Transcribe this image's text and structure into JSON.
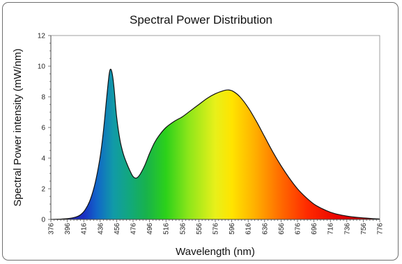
{
  "chart_data": {
    "type": "area",
    "title": "Spectral Power Distribution",
    "xlabel": "Wavelength (nm)",
    "ylabel": "Spectral Power intensity (mW/nm)",
    "xlim": [
      376,
      776
    ],
    "ylim": [
      0,
      12
    ],
    "x_ticks": [
      376,
      396,
      416,
      436,
      456,
      476,
      496,
      516,
      536,
      556,
      576,
      596,
      616,
      636,
      656,
      676,
      696,
      716,
      736,
      756,
      776
    ],
    "y_ticks": [
      0,
      2,
      4,
      6,
      8,
      10,
      12
    ],
    "grid": false,
    "fill": "visible-spectrum gradient",
    "series": [
      {
        "x": [
          376,
          386,
          396,
          406,
          412,
          418,
          424,
          430,
          436,
          440,
          444,
          447,
          449,
          451,
          453,
          456,
          460,
          464,
          468,
          472,
          476,
          480,
          484,
          490,
          496,
          502,
          508,
          516,
          526,
          536,
          546,
          556,
          566,
          576,
          586,
          592,
          598,
          606,
          616,
          626,
          636,
          646,
          656,
          666,
          676,
          686,
          696,
          706,
          716,
          726,
          736,
          746,
          756,
          766,
          776
        ],
        "y": [
          0.0,
          0.02,
          0.05,
          0.15,
          0.3,
          0.65,
          1.3,
          2.4,
          4.1,
          5.8,
          8.0,
          9.5,
          9.8,
          9.4,
          8.5,
          6.7,
          5.2,
          4.3,
          3.7,
          3.2,
          2.8,
          2.7,
          2.9,
          3.5,
          4.3,
          5.0,
          5.5,
          6.0,
          6.4,
          6.7,
          7.1,
          7.5,
          7.9,
          8.2,
          8.4,
          8.45,
          8.35,
          8.0,
          7.3,
          6.4,
          5.4,
          4.4,
          3.5,
          2.7,
          2.0,
          1.45,
          1.0,
          0.7,
          0.47,
          0.32,
          0.22,
          0.15,
          0.1,
          0.06,
          0.03
        ]
      }
    ]
  }
}
